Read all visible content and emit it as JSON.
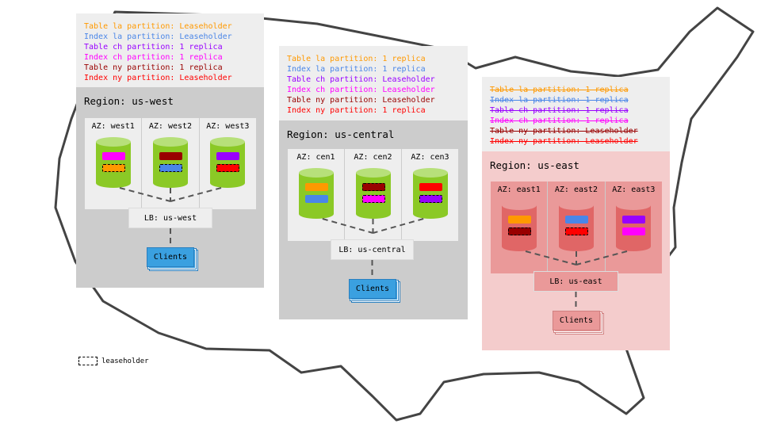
{
  "colors": {
    "la_table": "#ff9900",
    "la_index": "#4a86e8",
    "ch_table": "#9900ff",
    "ch_index": "#ff00ff",
    "ny_table": "#990000",
    "ny_index": "#ff0000",
    "green": "#8bc926",
    "green_top": "#b7e07a",
    "red_cyl": "#e06666",
    "red_top": "#ea9999",
    "clients_blue": "#3aa0e0",
    "clients_red": "#ea9999"
  },
  "regions": [
    {
      "id": "us-west",
      "title": "Region: us-west",
      "theme": "green",
      "struck": false,
      "legend": [
        {
          "text": "Table la partition: Leaseholder",
          "color": "la_table"
        },
        {
          "text": "Index la partition: Leaseholder",
          "color": "la_index"
        },
        {
          "text": "Table ch partition: 1 replica",
          "color": "ch_table"
        },
        {
          "text": "Index ch partition: 1 replica",
          "color": "ch_index"
        },
        {
          "text": "Table ny partition: 1 replica",
          "color": "ny_table"
        },
        {
          "text": "Index ny partition: Leaseholder",
          "color": "ny_index"
        }
      ],
      "azs": [
        {
          "label": "AZ: west1",
          "chips": [
            {
              "color": "ch_index",
              "leaseholder": false
            },
            {
              "color": "la_table",
              "leaseholder": true
            }
          ]
        },
        {
          "label": "AZ: west2",
          "chips": [
            {
              "color": "ny_table",
              "leaseholder": false
            },
            {
              "color": "la_index",
              "leaseholder": true
            }
          ]
        },
        {
          "label": "AZ: west3",
          "chips": [
            {
              "color": "ch_table",
              "leaseholder": false
            },
            {
              "color": "ny_index",
              "leaseholder": true
            }
          ]
        }
      ],
      "lb": "LB: us-west",
      "clients": "Clients"
    },
    {
      "id": "us-central",
      "title": "Region: us-central",
      "theme": "green",
      "struck": false,
      "legend": [
        {
          "text": "Table la partition: 1 replica",
          "color": "la_table"
        },
        {
          "text": "Index la partition: 1 replica",
          "color": "la_index"
        },
        {
          "text": "Table ch partition: Leaseholder",
          "color": "ch_table"
        },
        {
          "text": "Index ch partition: Leaseholder",
          "color": "ch_index"
        },
        {
          "text": "Table ny partition: Leaseholder",
          "color": "ny_table"
        },
        {
          "text": "Index ny partition: 1 replica",
          "color": "ny_index"
        }
      ],
      "azs": [
        {
          "label": "AZ: cen1",
          "chips": [
            {
              "color": "la_table",
              "leaseholder": false
            },
            {
              "color": "la_index",
              "leaseholder": false
            }
          ]
        },
        {
          "label": "AZ: cen2",
          "chips": [
            {
              "color": "ny_table",
              "leaseholder": true
            },
            {
              "color": "ch_index",
              "leaseholder": true
            }
          ]
        },
        {
          "label": "AZ: cen3",
          "chips": [
            {
              "color": "ny_index",
              "leaseholder": false
            },
            {
              "color": "ch_table",
              "leaseholder": true
            }
          ]
        }
      ],
      "lb": "LB: us-central",
      "clients": "Clients"
    },
    {
      "id": "us-east",
      "title": "Region: us-east",
      "theme": "red",
      "struck": true,
      "legend": [
        {
          "text": "Table la partition: 1 replica",
          "color": "la_table"
        },
        {
          "text": "Index la partition: 1 replica",
          "color": "la_index"
        },
        {
          "text": "Table ch partition: 1 replica",
          "color": "ch_table"
        },
        {
          "text": "Index ch partition: 1 replica",
          "color": "ch_index"
        },
        {
          "text": "Table ny partition: Leaseholder",
          "color": "ny_table"
        },
        {
          "text": "Index ny partition: Leaseholder",
          "color": "ny_index"
        }
      ],
      "azs": [
        {
          "label": "AZ: east1",
          "chips": [
            {
              "color": "la_table",
              "leaseholder": false
            },
            {
              "color": "ny_table",
              "leaseholder": true
            }
          ]
        },
        {
          "label": "AZ: east2",
          "chips": [
            {
              "color": "la_index",
              "leaseholder": false
            },
            {
              "color": "ny_index",
              "leaseholder": true
            }
          ]
        },
        {
          "label": "AZ: east3",
          "chips": [
            {
              "color": "ch_table",
              "leaseholder": false
            },
            {
              "color": "ch_index",
              "leaseholder": false
            }
          ]
        }
      ],
      "lb": "LB: us-east",
      "clients": "Clients"
    }
  ],
  "key": {
    "label": "leaseholder"
  }
}
